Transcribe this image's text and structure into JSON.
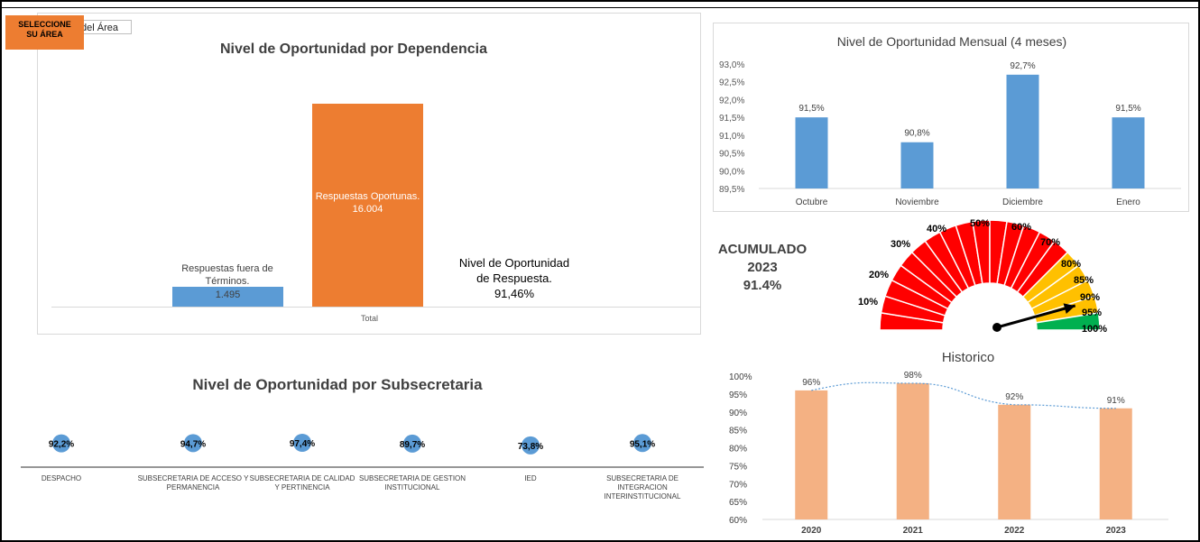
{
  "control": {
    "button_label_line1": "SELECCIONE",
    "button_label_line2": "SU ÁREA",
    "area_value": "del Área"
  },
  "dependencia": {
    "title": "Nivel de Oportunidad por Dependencia",
    "category": "Total",
    "late_label_line1": "Respuestas fuera de",
    "late_label_line2": "Términos.",
    "late_value": "1.495",
    "ontime_label": "Respuestas Oportunas.",
    "ontime_value": "16.004",
    "level_line1": "Nivel de Oportunidad",
    "level_line2": "de Respuesta.",
    "level_value": "91,46%"
  },
  "subsecretaria": {
    "title": "Nivel de Oportunidad por Subsecretaria"
  },
  "acumulado": {
    "line1": "ACUMULADO",
    "line2": "2023",
    "line3": "91.4%"
  },
  "gauge": {
    "value": 91.4,
    "labels": [
      "10%",
      "20%",
      "30%",
      "40%",
      "50%",
      "60%",
      "70%",
      "80%",
      "85%",
      "90%",
      "95%",
      "100%"
    ],
    "colors": {
      "red": "#ff0000",
      "yellow": "#ffc000",
      "green": "#00b050",
      "needle": "#000000"
    }
  },
  "colors": {
    "blue": "#5b9bd5",
    "orange": "#ed7d31",
    "peach": "#f4b183",
    "trend": "#5b9bd5"
  },
  "chart_data": [
    {
      "type": "bar",
      "title": "Nivel de Oportunidad por Dependencia",
      "categories": [
        "Total"
      ],
      "series": [
        {
          "name": "Respuestas fuera de Términos.",
          "values": [
            1495
          ]
        },
        {
          "name": "Respuestas Oportunas.",
          "values": [
            16004
          ]
        }
      ]
    },
    {
      "type": "bar",
      "title": "Nivel de Oportunidad Mensual (4 meses)",
      "categories": [
        "Octubre",
        "Noviembre",
        "Diciembre",
        "Enero"
      ],
      "values": [
        91.5,
        90.8,
        92.7,
        91.5
      ],
      "value_labels": [
        "91,5%",
        "90,8%",
        "92,7%",
        "91,5%"
      ],
      "ylim": [
        89.5,
        93.0
      ],
      "yticks": [
        "89,5%",
        "90,0%",
        "90,5%",
        "91,0%",
        "91,5%",
        "92,0%",
        "92,5%",
        "93,0%"
      ]
    },
    {
      "type": "scatter",
      "title": "Nivel de Oportunidad por Subsecretaria",
      "categories": [
        "DESPACHO",
        "SUBSECRETARIA DE ACCESO Y PERMANENCIA",
        "SUBSECRETARIA DE CALIDAD Y PERTINENCIA",
        "SUBSECRETARIA DE GESTION INSTITUCIONAL",
        "IED",
        "SUBSECRETARIA DE INTEGRACION INTERINSTITUCIONAL"
      ],
      "category_lines": [
        [
          "DESPACHO"
        ],
        [
          "SUBSECRETARIA DE ACCESO Y",
          "PERMANENCIA"
        ],
        [
          "SUBSECRETARIA DE CALIDAD",
          "Y PERTINENCIA"
        ],
        [
          "SUBSECRETARIA DE GESTION",
          "INSTITUCIONAL"
        ],
        [
          "IED"
        ],
        [
          "SUBSECRETARIA DE",
          "INTEGRACION",
          "INTERINSTITUCIONAL"
        ]
      ],
      "values": [
        92.2,
        94.7,
        97.4,
        89.7,
        73.8,
        95.1
      ],
      "value_labels": [
        "92,2%",
        "94,7%",
        "97,4%",
        "89,7%",
        "73,8%",
        "95,1%"
      ]
    },
    {
      "type": "bar",
      "title": "Historico",
      "categories": [
        "2020",
        "2021",
        "2022",
        "2023"
      ],
      "values": [
        96,
        98,
        92,
        91
      ],
      "value_labels": [
        "96%",
        "98%",
        "92%",
        "91%"
      ],
      "ylim": [
        60,
        100
      ],
      "yticks": [
        "60%",
        "65%",
        "70%",
        "75%",
        "80%",
        "85%",
        "90%",
        "95%",
        "100%"
      ],
      "trendline": true
    }
  ]
}
